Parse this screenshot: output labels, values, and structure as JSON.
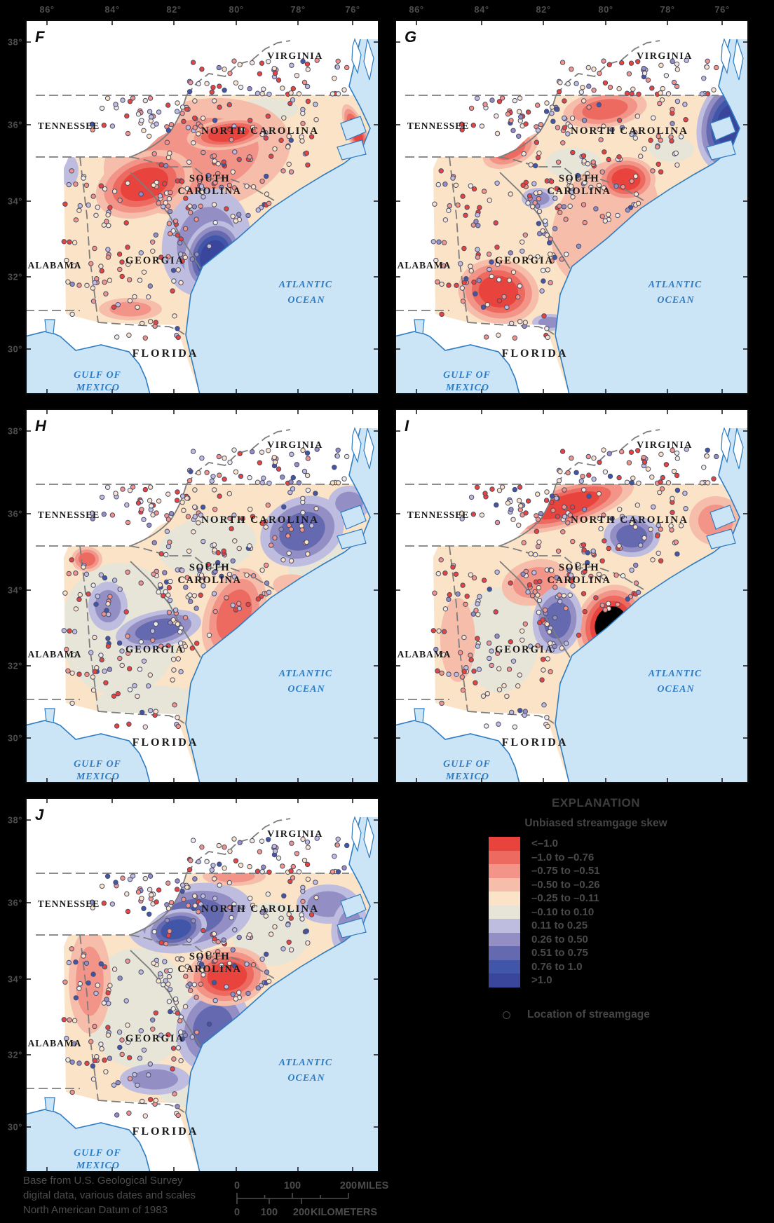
{
  "axes": {
    "longitude": [
      "86°",
      "84°",
      "82°",
      "80°",
      "78°",
      "76°"
    ],
    "latitude": [
      "38°",
      "36°",
      "34°",
      "32°",
      "30°"
    ]
  },
  "panels": [
    {
      "letter": "F"
    },
    {
      "letter": "G"
    },
    {
      "letter": "H"
    },
    {
      "letter": "I"
    },
    {
      "letter": "J"
    }
  ],
  "map_labels": {
    "virginia": "VIRGINIA",
    "tennessee": "TENNESSEE",
    "north_carolina": "NORTH CAROLINA",
    "south_carolina": [
      "SOUTH",
      "CAROLINA"
    ],
    "georgia": "GEORGIA",
    "alabama": "ALABAMA",
    "florida": "FLORIDA",
    "atlantic": [
      "ATLANTIC",
      "OCEAN"
    ],
    "gulf": [
      "GULF OF",
      "MEXICO"
    ]
  },
  "legend": {
    "title": "EXPLANATION",
    "subtitle": "Unbiased streamgage skew",
    "classes": [
      {
        "label": "<–1.0",
        "color": "#e8433c"
      },
      {
        "label": "–1.0 to –0.76",
        "color": "#ed6a60"
      },
      {
        "label": "–0.75 to –0.51",
        "color": "#f29488"
      },
      {
        "label": "–0.50 to –0.26",
        "color": "#f6beaa"
      },
      {
        "label": "–0.25 to –0.11",
        "color": "#fae3c6"
      },
      {
        "label": "–0.10 to 0.10",
        "color": "#e6e5d8"
      },
      {
        "label": "0.11 to 0.25",
        "color": "#bfbddf"
      },
      {
        "label": "0.26 to 0.50",
        "color": "#938fc4"
      },
      {
        "label": "0.51 to 0.75",
        "color": "#6569af"
      },
      {
        "label": "0.76 to 1.0",
        "color": "#4156a8"
      },
      {
        "label": ">1.0",
        "color": "#3a469b"
      }
    ],
    "symbol_label": "Location of streamgage"
  },
  "credit": [
    "Base from U.S. Geological Survey",
    "digital data, various dates and scales",
    "North American Datum of 1983"
  ],
  "scale_bar": {
    "miles": [
      "0",
      "100",
      "200",
      "MILES"
    ],
    "kilometers": [
      "0",
      "100",
      "200",
      "KILOMETERS"
    ]
  },
  "colors": {
    "background": "#000000",
    "land": "#ffffff",
    "ocean": "#cbe5f7",
    "coastline": "#2e7cc3",
    "state_border": "#7d7d7d",
    "margin_text": "#4d4d4d",
    "state_label": "#1a1a1a"
  }
}
